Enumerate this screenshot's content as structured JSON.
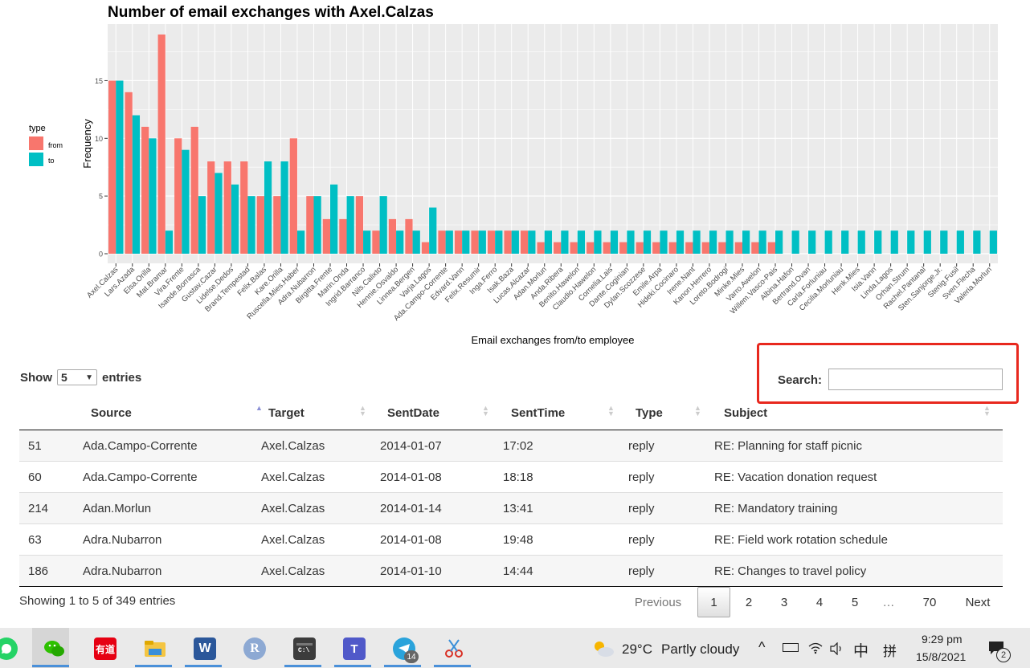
{
  "chart_data": {
    "type": "bar",
    "title": "Number of email exchanges with Axel.Calzas",
    "xlabel": "Email exchanges from/to employee",
    "ylabel": "Frequency",
    "ylim": [
      0,
      20
    ],
    "yticks": [
      0,
      5,
      10,
      15
    ],
    "grid": true,
    "legend": {
      "title": "type",
      "position": "left"
    },
    "categories": [
      "Axel.Calzas",
      "Lars.Azada",
      "Elsa.Orilla",
      "Mat.Bramar",
      "Vira.Frente",
      "Isande.Borrasca",
      "Gustav.Cazar",
      "Lidelse.Dedos",
      "Brand.Tempestad",
      "Felix.Balas",
      "Kare.Orilla",
      "Ruscella.Mies.Haber",
      "Adra.Nubarron",
      "Birgitta.Frente",
      "Marin.Onda",
      "Ingrid.Barranco",
      "Nils.Calixto",
      "Hennie.Osvaldo",
      "Linnea.Bergen",
      "Varja.Lagos",
      "Ada.Campo-Corrente",
      "Edvard.Vann",
      "Felix.Resumir",
      "Inga.Ferro",
      "Isak.Baza",
      "Lucas.Alcazar",
      "Adan.Morlun",
      "Anda.Ribera",
      "Benito.Hawelon",
      "Claudio.Hawelon",
      "Cornelia.Lais",
      "Dante.Coginian",
      "Dylan.Scozzese",
      "Emile.Arpa",
      "Hideki.Cocinaro",
      "Irene.Nant",
      "Kanon.Herrero",
      "Loreto.Bodrogi",
      "Minke.Mies",
      "Varro.Awelon",
      "Willem.Vasco-Pais",
      "Albina.Hafon",
      "Bertrand.Ovan",
      "Carla.Forluniau",
      "Cecilia.Morluniau",
      "Henk.Mies",
      "Isia.Vann",
      "Linda.Lagos",
      "Orhan.Strum",
      "Rachel.Pantanal",
      "Sten.Sanjorge.Jr.",
      "Stenig.Fusil",
      "Sven.Flecha",
      "Valeria.Morlun"
    ],
    "series": [
      {
        "name": "from",
        "color": "#f8766d",
        "values": [
          15,
          14,
          11,
          19,
          10,
          11,
          8,
          8,
          8,
          5,
          5,
          10,
          5,
          3,
          3,
          5,
          2,
          3,
          3,
          1,
          2,
          2,
          2,
          2,
          2,
          2,
          1,
          1,
          1,
          1,
          1,
          1,
          1,
          1,
          1,
          1,
          1,
          1,
          1,
          1,
          1,
          0,
          0,
          0,
          0,
          0,
          0,
          0,
          0,
          0,
          0,
          0,
          0,
          0
        ]
      },
      {
        "name": "to",
        "color": "#00bfc4",
        "values": [
          15,
          12,
          10,
          2,
          9,
          5,
          7,
          6,
          5,
          8,
          8,
          2,
          5,
          6,
          5,
          2,
          5,
          2,
          2,
          4,
          2,
          2,
          2,
          2,
          2,
          2,
          2,
          2,
          2,
          2,
          2,
          2,
          2,
          2,
          2,
          2,
          2,
          2,
          2,
          2,
          2,
          2,
          2,
          2,
          2,
          2,
          2,
          2,
          2,
          2,
          2,
          2,
          2,
          2
        ]
      }
    ]
  },
  "table": {
    "show_label": "Show",
    "entries_label": "entries",
    "page_length": "5",
    "search_label": "Search:",
    "search_value": "",
    "columns": [
      "",
      "Source",
      "Target",
      "SentDate",
      "SentTime",
      "Type",
      "Subject"
    ],
    "rows": [
      {
        "id": "51",
        "source": "Ada.Campo-Corrente",
        "target": "Axel.Calzas",
        "date": "2014-01-07",
        "time": "17:02",
        "type": "reply",
        "subject": "RE: Planning for staff picnic"
      },
      {
        "id": "60",
        "source": "Ada.Campo-Corrente",
        "target": "Axel.Calzas",
        "date": "2014-01-08",
        "time": "18:18",
        "type": "reply",
        "subject": "RE: Vacation donation request"
      },
      {
        "id": "214",
        "source": "Adan.Morlun",
        "target": "Axel.Calzas",
        "date": "2014-01-14",
        "time": "13:41",
        "type": "reply",
        "subject": "RE: Mandatory training"
      },
      {
        "id": "63",
        "source": "Adra.Nubarron",
        "target": "Axel.Calzas",
        "date": "2014-01-08",
        "time": "19:48",
        "type": "reply",
        "subject": "RE: Field work rotation schedule"
      },
      {
        "id": "186",
        "source": "Adra.Nubarron",
        "target": "Axel.Calzas",
        "date": "2014-01-10",
        "time": "14:44",
        "type": "reply",
        "subject": "RE: Changes to travel policy"
      }
    ],
    "info": "Showing 1 to 5 of 349 entries",
    "pagination": {
      "previous": "Previous",
      "pages": [
        "1",
        "2",
        "3",
        "4",
        "5",
        "…",
        "70"
      ],
      "next": "Next",
      "current": "1"
    }
  },
  "taskbar": {
    "apps": [
      "whatsapp-icon",
      "wechat-icon",
      "youdao-icon",
      "file-explorer-icon",
      "word-icon",
      "r-icon",
      "terminal-icon",
      "teams-icon",
      "telegram-icon",
      "snipping-tool-icon"
    ],
    "youdao_label": "有道",
    "word_label": "W",
    "r_label": "R",
    "teams_label": "T",
    "telegram_badge": "14",
    "weather_temp": "29°C",
    "weather_text": "Partly cloudy",
    "ime_1": "中",
    "ime_2": "拼",
    "time": "9:29 pm",
    "date": "15/8/2021",
    "notifications": "2"
  }
}
